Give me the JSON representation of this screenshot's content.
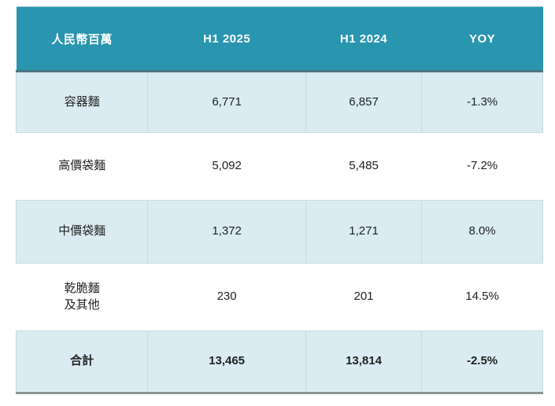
{
  "chart_data": {
    "type": "table",
    "title": "",
    "columns": [
      "人民幣百萬",
      "H1 2025",
      "H1 2024",
      "YOY"
    ],
    "rows": [
      {
        "label": "容器麵",
        "h1_2025": "6,771",
        "h1_2024": "6,857",
        "yoy": "-1.3%"
      },
      {
        "label": "高價袋麵",
        "h1_2025": "5,092",
        "h1_2024": "5,485",
        "yoy": "-7.2%"
      },
      {
        "label": "中價袋麵",
        "h1_2025": "1,372",
        "h1_2024": "1,271",
        "yoy": "8.0%"
      },
      {
        "label": "乾脆麵\n及其他",
        "h1_2025": "230",
        "h1_2024": "201",
        "yoy": "14.5%"
      },
      {
        "label": "合計",
        "h1_2025": "13,465",
        "h1_2024": "13,814",
        "yoy": "-2.5%"
      }
    ]
  },
  "colors": {
    "header_bg": "#2995AF",
    "header_text": "#FFFFFF",
    "row_alt_bg": "#DAECF2",
    "border_light": "#C9DAE0",
    "header_border_bottom": "#4C7682",
    "table_border_bottom": "#8E9396",
    "text": "#212121"
  }
}
